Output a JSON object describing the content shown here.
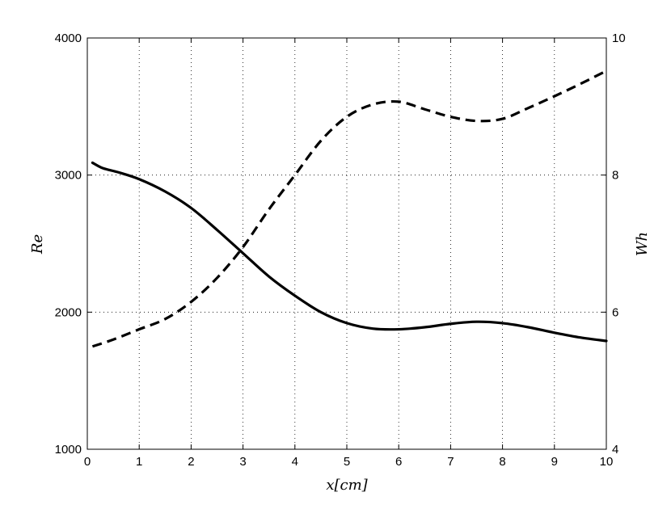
{
  "chart_data": {
    "type": "line",
    "xlabel": "x[cm]",
    "ylabel_left": "Re",
    "ylabel_right": "Wh",
    "xlim": [
      0,
      10
    ],
    "ylim_left": [
      1000,
      4000
    ],
    "ylim_right": [
      4,
      10
    ],
    "x_ticks": [
      "0",
      "1",
      "2",
      "3",
      "4",
      "5",
      "6",
      "7",
      "8",
      "9",
      "10"
    ],
    "y_left_ticks": [
      "1000",
      "2000",
      "3000",
      "4000"
    ],
    "y_right_ticks": [
      "4",
      "6",
      "8",
      "10"
    ],
    "grid": true,
    "series": [
      {
        "axis": "left",
        "style": "solid",
        "x": [
          0.1,
          0.3,
          0.6,
          1.0,
          1.5,
          2.0,
          2.5,
          3.0,
          3.5,
          4.0,
          4.5,
          5.0,
          5.5,
          6.0,
          6.5,
          7.0,
          7.5,
          8.0,
          8.5,
          9.0,
          9.5,
          10.0
        ],
        "values": [
          3090,
          3050,
          3020,
          2970,
          2880,
          2760,
          2600,
          2430,
          2260,
          2120,
          2000,
          1920,
          1880,
          1875,
          1890,
          1915,
          1930,
          1920,
          1890,
          1850,
          1815,
          1790
        ]
      },
      {
        "axis": "right",
        "style": "dashed",
        "x": [
          0.1,
          0.5,
          1.0,
          1.5,
          2.0,
          2.5,
          3.0,
          3.5,
          4.0,
          4.5,
          5.0,
          5.5,
          6.0,
          6.5,
          7.0,
          7.5,
          8.0,
          8.5,
          9.0,
          9.5,
          10.0
        ],
        "values": [
          5.5,
          5.6,
          5.75,
          5.9,
          6.15,
          6.5,
          6.95,
          7.5,
          8.0,
          8.5,
          8.85,
          9.03,
          9.07,
          8.96,
          8.85,
          8.79,
          8.82,
          8.98,
          9.15,
          9.33,
          9.52
        ]
      }
    ]
  }
}
